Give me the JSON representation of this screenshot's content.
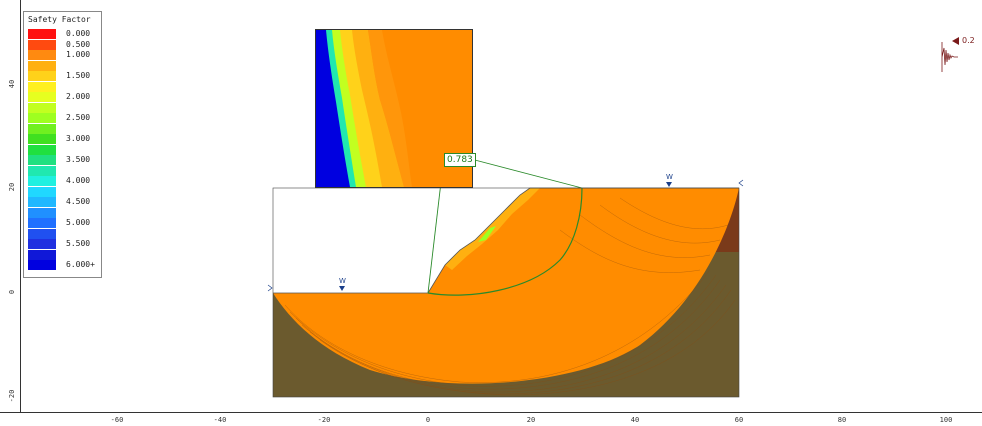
{
  "legend": {
    "title": "Safety Factor",
    "items": [
      {
        "label": "0.000",
        "color": "#ff1010"
      },
      {
        "label": "0.500",
        "color": "#ff4a10"
      },
      {
        "label": "1.000",
        "color": "#ff8a10"
      },
      {
        "label": "",
        "color": "#ffb010"
      },
      {
        "label": "1.500",
        "color": "#ffd21a"
      },
      {
        "label": "",
        "color": "#fff020"
      },
      {
        "label": "2.000",
        "color": "#e6ff20"
      },
      {
        "label": "",
        "color": "#c2ff20"
      },
      {
        "label": "2.500",
        "color": "#9eff20"
      },
      {
        "label": "",
        "color": "#70f020"
      },
      {
        "label": "3.000",
        "color": "#40e020"
      },
      {
        "label": "",
        "color": "#20e040"
      },
      {
        "label": "3.500",
        "color": "#20e080"
      },
      {
        "label": "",
        "color": "#20e8b0"
      },
      {
        "label": "4.000",
        "color": "#20f0e0"
      },
      {
        "label": "",
        "color": "#20d8ff"
      },
      {
        "label": "4.500",
        "color": "#20b8ff"
      },
      {
        "label": "",
        "color": "#2090ff"
      },
      {
        "label": "5.000",
        "color": "#2070ff"
      },
      {
        "label": "",
        "color": "#2050f0"
      },
      {
        "label": "5.500",
        "color": "#2030e0"
      },
      {
        "label": "",
        "color": "#1018d8"
      },
      {
        "label": "6.000+",
        "color": "#0000e0"
      }
    ]
  },
  "critical_surface": {
    "safety_factor": "0.783"
  },
  "seismic": {
    "coefficient_label": "0.2"
  },
  "water_table": {
    "marker_left": "W",
    "marker_right": "W"
  },
  "axes": {
    "y_ticks": [
      "40",
      "20",
      "0",
      "-20"
    ],
    "x_ticks": [
      "-60",
      "-40",
      "-20",
      "0",
      "20",
      "40",
      "60",
      "80",
      "100"
    ]
  },
  "colors": {
    "slope_material": "#ff8c00",
    "lower_soil": "#6b5a2e",
    "right_soil": "#7a3a1a",
    "slip_surface": "#2a8a2a",
    "water_marker": "#1a3f8a"
  }
}
